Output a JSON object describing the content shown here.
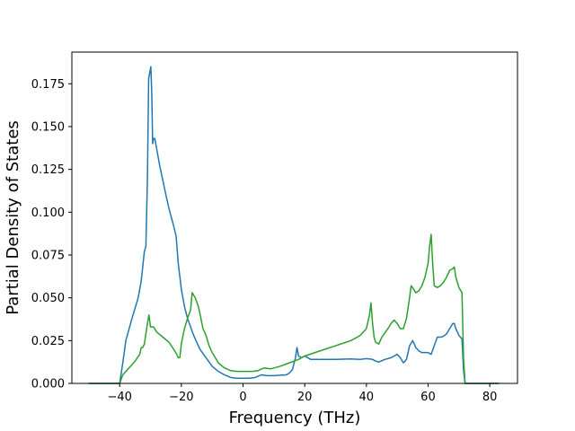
{
  "chart_data": {
    "type": "line",
    "title": "",
    "xlabel": "Frequency (THz)",
    "ylabel": "Partial Density of States",
    "xlim": [
      -55.5,
      89
    ],
    "ylim": [
      0,
      0.1935
    ],
    "xticks": [
      -40,
      -20,
      0,
      20,
      40,
      60,
      80
    ],
    "xtick_labels": [
      "−40",
      "−20",
      "0",
      "20",
      "40",
      "60",
      "80"
    ],
    "yticks": [
      0.0,
      0.025,
      0.05,
      0.075,
      0.1,
      0.125,
      0.15,
      0.175
    ],
    "ytick_labels": [
      "0.000",
      "0.025",
      "0.050",
      "0.075",
      "0.100",
      "0.125",
      "0.150",
      "0.175"
    ],
    "grid": false,
    "legend": "none",
    "series": [
      {
        "color": "#1f77b4",
        "points": [
          [
            -50,
            0
          ],
          [
            -40,
            0
          ],
          [
            -39,
            0.012
          ],
          [
            -38,
            0.025
          ],
          [
            -36,
            0.038
          ],
          [
            -34,
            0.05
          ],
          [
            -33,
            0.06
          ],
          [
            -32,
            0.077
          ],
          [
            -31.5,
            0.08
          ],
          [
            -31,
            0.12
          ],
          [
            -30.6,
            0.178
          ],
          [
            -30.2,
            0.182
          ],
          [
            -29.9,
            0.185
          ],
          [
            -29.6,
            0.17
          ],
          [
            -29.3,
            0.14
          ],
          [
            -29,
            0.143
          ],
          [
            -28.6,
            0.143
          ],
          [
            -28.3,
            0.14
          ],
          [
            -27,
            0.127
          ],
          [
            -25,
            0.11
          ],
          [
            -24,
            0.102
          ],
          [
            -22.5,
            0.092
          ],
          [
            -21.7,
            0.086
          ],
          [
            -21,
            0.07
          ],
          [
            -20,
            0.055
          ],
          [
            -19,
            0.045
          ],
          [
            -18,
            0.038
          ],
          [
            -16,
            0.028
          ],
          [
            -14,
            0.02
          ],
          [
            -12,
            0.015
          ],
          [
            -10,
            0.01
          ],
          [
            -8,
            0.007
          ],
          [
            -6,
            0.005
          ],
          [
            -4,
            0.0035
          ],
          [
            -2,
            0.003
          ],
          [
            0,
            0.003
          ],
          [
            2,
            0.003
          ],
          [
            4,
            0.0035
          ],
          [
            6,
            0.005
          ],
          [
            8,
            0.0045
          ],
          [
            10,
            0.0045
          ],
          [
            12,
            0.0048
          ],
          [
            14,
            0.005
          ],
          [
            15,
            0.006
          ],
          [
            16,
            0.008
          ],
          [
            17,
            0.015
          ],
          [
            17.5,
            0.021
          ],
          [
            18,
            0.016
          ],
          [
            19,
            0.015
          ],
          [
            20,
            0.016
          ],
          [
            22,
            0.014
          ],
          [
            25,
            0.014
          ],
          [
            30,
            0.014
          ],
          [
            35,
            0.0143
          ],
          [
            38,
            0.014
          ],
          [
            40,
            0.0145
          ],
          [
            41,
            0.0143
          ],
          [
            42,
            0.014
          ],
          [
            43,
            0.013
          ],
          [
            44,
            0.0125
          ],
          [
            46,
            0.014
          ],
          [
            48,
            0.015
          ],
          [
            49,
            0.016
          ],
          [
            50,
            0.017
          ],
          [
            51,
            0.015
          ],
          [
            52,
            0.012
          ],
          [
            53,
            0.014
          ],
          [
            54,
            0.022
          ],
          [
            55,
            0.025
          ],
          [
            56,
            0.021
          ],
          [
            57,
            0.019
          ],
          [
            58,
            0.018
          ],
          [
            60,
            0.018
          ],
          [
            61,
            0.017
          ],
          [
            62,
            0.022
          ],
          [
            63,
            0.027
          ],
          [
            64,
            0.027
          ],
          [
            65,
            0.0275
          ],
          [
            66,
            0.029
          ],
          [
            67,
            0.032
          ],
          [
            68,
            0.035
          ],
          [
            68.5,
            0.035
          ],
          [
            69,
            0.032
          ],
          [
            70,
            0.028
          ],
          [
            71,
            0.026
          ],
          [
            71.5,
            0.008
          ],
          [
            72,
            0
          ],
          [
            83,
            0
          ]
        ]
      },
      {
        "color": "#2ca02c",
        "points": [
          [
            -50,
            0
          ],
          [
            -40,
            0
          ],
          [
            -39,
            0.005
          ],
          [
            -37,
            0.009
          ],
          [
            -35,
            0.013
          ],
          [
            -33.5,
            0.017
          ],
          [
            -33,
            0.021
          ],
          [
            -32.5,
            0.021
          ],
          [
            -32,
            0.023
          ],
          [
            -31,
            0.035
          ],
          [
            -30.5,
            0.04
          ],
          [
            -30,
            0.033
          ],
          [
            -29.5,
            0.033
          ],
          [
            -29,
            0.033
          ],
          [
            -28,
            0.03
          ],
          [
            -26,
            0.027
          ],
          [
            -24,
            0.024
          ],
          [
            -22.5,
            0.02
          ],
          [
            -21.5,
            0.017
          ],
          [
            -21,
            0.015
          ],
          [
            -20.5,
            0.015
          ],
          [
            -20,
            0.023
          ],
          [
            -19,
            0.032
          ],
          [
            -18,
            0.038
          ],
          [
            -17,
            0.043
          ],
          [
            -16.5,
            0.053
          ],
          [
            -15.5,
            0.05
          ],
          [
            -14.5,
            0.045
          ],
          [
            -14,
            0.041
          ],
          [
            -13,
            0.032
          ],
          [
            -12,
            0.028
          ],
          [
            -11,
            0.022
          ],
          [
            -10,
            0.018
          ],
          [
            -8,
            0.012
          ],
          [
            -6,
            0.009
          ],
          [
            -4,
            0.0075
          ],
          [
            -2,
            0.007
          ],
          [
            0,
            0.007
          ],
          [
            3,
            0.007
          ],
          [
            5,
            0.0075
          ],
          [
            6,
            0.0085
          ],
          [
            7,
            0.009
          ],
          [
            9,
            0.0085
          ],
          [
            12,
            0.01
          ],
          [
            15,
            0.012
          ],
          [
            18,
            0.014
          ],
          [
            20,
            0.016
          ],
          [
            25,
            0.019
          ],
          [
            30,
            0.022
          ],
          [
            35,
            0.025
          ],
          [
            38,
            0.028
          ],
          [
            40,
            0.032
          ],
          [
            41,
            0.04
          ],
          [
            41.5,
            0.047
          ],
          [
            42,
            0.035
          ],
          [
            42.5,
            0.027
          ],
          [
            43,
            0.024
          ],
          [
            44,
            0.023
          ],
          [
            45,
            0.027
          ],
          [
            47,
            0.032
          ],
          [
            48,
            0.035
          ],
          [
            49,
            0.037
          ],
          [
            50,
            0.035
          ],
          [
            51,
            0.032
          ],
          [
            52,
            0.032
          ],
          [
            53,
            0.038
          ],
          [
            54,
            0.05
          ],
          [
            54.5,
            0.057
          ],
          [
            55,
            0.056
          ],
          [
            56,
            0.053
          ],
          [
            57,
            0.054
          ],
          [
            58,
            0.057
          ],
          [
            59,
            0.062
          ],
          [
            60,
            0.07
          ],
          [
            60.5,
            0.08
          ],
          [
            61,
            0.087
          ],
          [
            61.5,
            0.07
          ],
          [
            62,
            0.057
          ],
          [
            63,
            0.056
          ],
          [
            64,
            0.057
          ],
          [
            65,
            0.059
          ],
          [
            66,
            0.062
          ],
          [
            67,
            0.066
          ],
          [
            68,
            0.067
          ],
          [
            68.5,
            0.068
          ],
          [
            69,
            0.062
          ],
          [
            70,
            0.056
          ],
          [
            71,
            0.053
          ],
          [
            71.5,
            0.015
          ],
          [
            72,
            0
          ],
          [
            83,
            0
          ]
        ]
      }
    ]
  }
}
